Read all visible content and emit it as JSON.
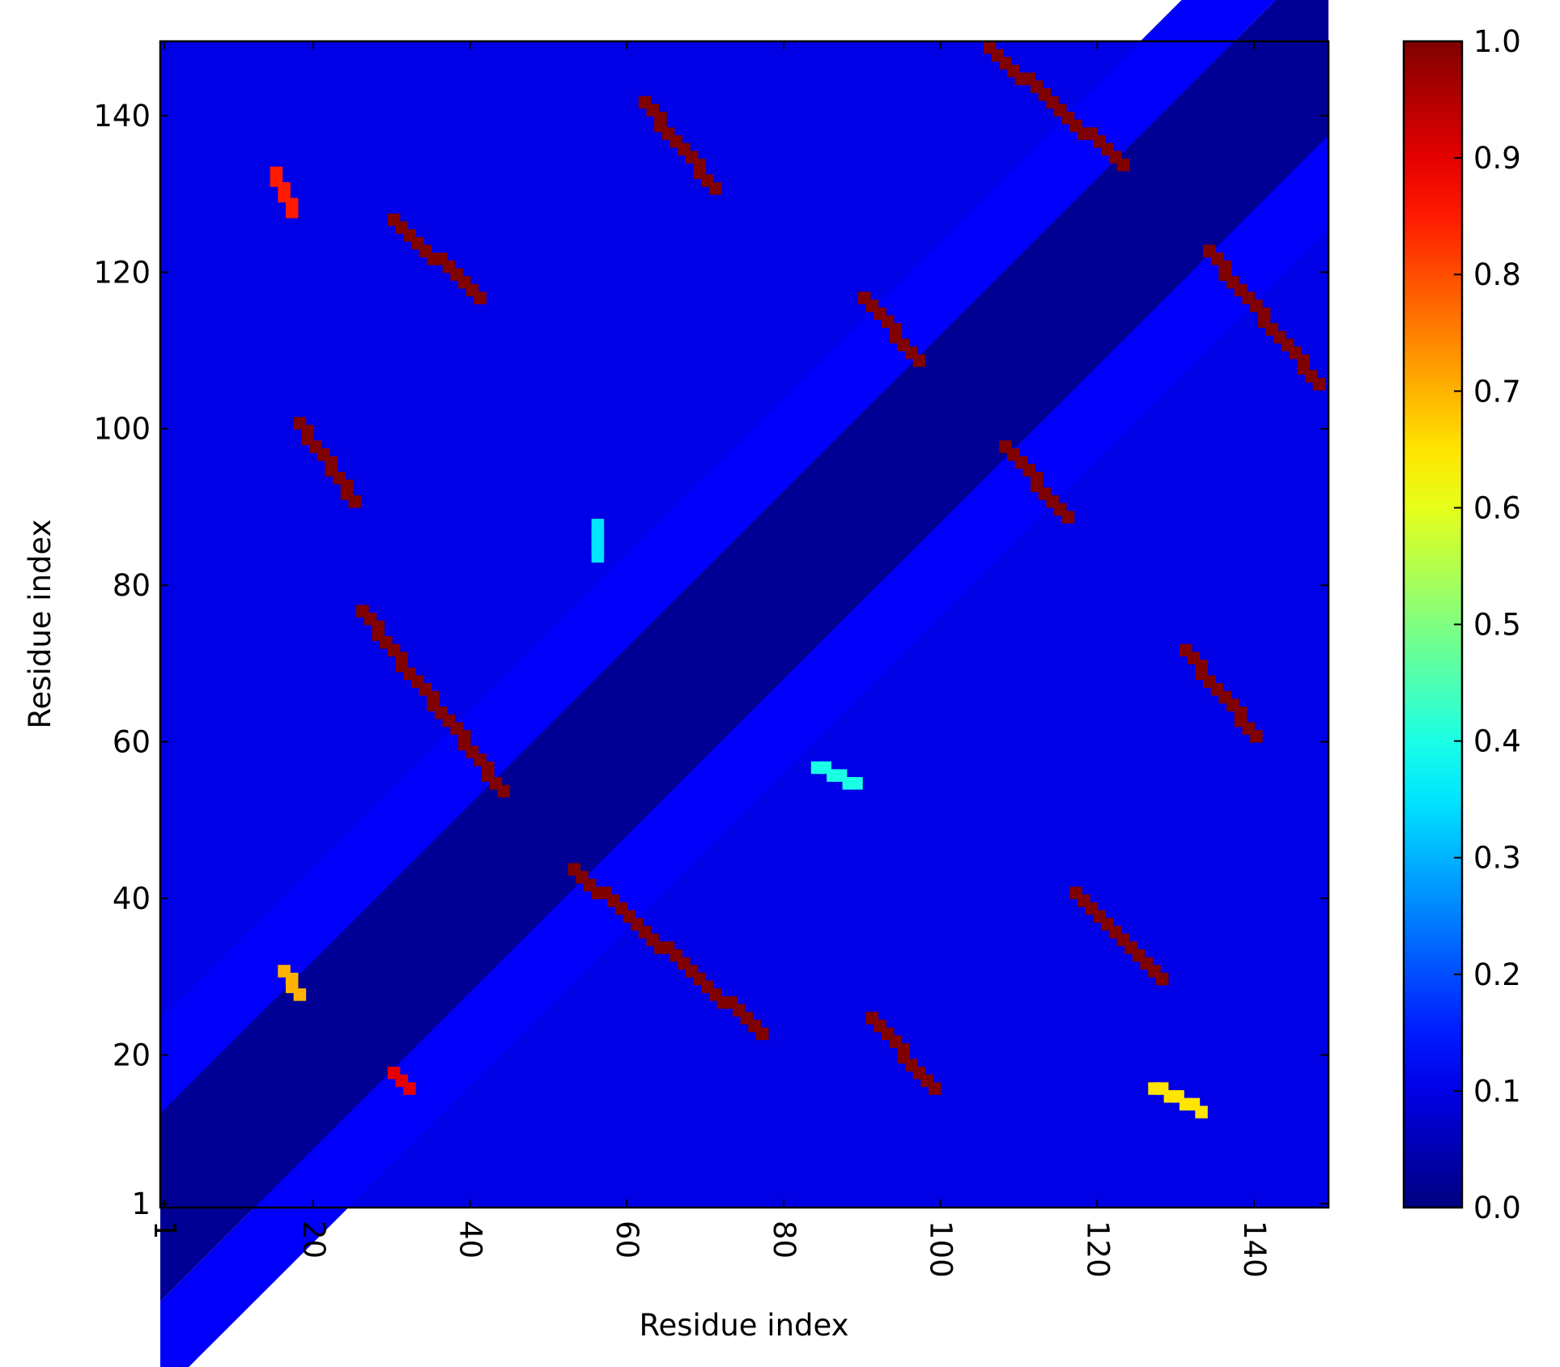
{
  "chart_data": {
    "type": "heatmap",
    "title": "",
    "xlabel": "Residue index",
    "ylabel": "Residue index",
    "x_ticks": [
      1,
      20,
      40,
      60,
      80,
      100,
      120,
      140
    ],
    "y_ticks": [
      1,
      20,
      40,
      60,
      80,
      100,
      120,
      140
    ],
    "xlim": [
      1,
      149
    ],
    "ylim": [
      1,
      149
    ],
    "grid": false,
    "colormap": "jet",
    "colorbar": {
      "range": [
        0.0,
        1.0
      ],
      "ticks": [
        "0.0",
        "0.1",
        "0.2",
        "0.3",
        "0.4",
        "0.5",
        "0.6",
        "0.7",
        "0.8",
        "0.9",
        "1.0"
      ]
    },
    "diagonal": {
      "main_band_halfwidth": 12,
      "main_band_value": 0.02,
      "side_band_width": 12,
      "side_band_value": 0.12,
      "background_value": 0.1
    },
    "contacts": [
      {
        "from": [
          15,
          133
        ],
        "to": [
          17,
          128
        ],
        "value": 0.85
      },
      {
        "from": [
          18,
          101
        ],
        "to": [
          25,
          91
        ],
        "value": 1.0
      },
      {
        "from": [
          16,
          31
        ],
        "to": [
          18,
          28
        ],
        "value": 0.7
      },
      {
        "from": [
          30,
          18
        ],
        "to": [
          32,
          16
        ],
        "value": 0.9
      },
      {
        "from": [
          26,
          77
        ],
        "to": [
          44,
          54
        ],
        "value": 1.0
      },
      {
        "from": [
          30,
          127
        ],
        "to": [
          41,
          117
        ],
        "value": 1.0
      },
      {
        "from": [
          53,
          44
        ],
        "to": [
          77,
          23
        ],
        "value": 1.0
      },
      {
        "from": [
          56,
          88
        ],
        "to": [
          56,
          84
        ],
        "value": 0.35
      },
      {
        "from": [
          62,
          142
        ],
        "to": [
          71,
          131
        ],
        "value": 1.0
      },
      {
        "from": [
          84,
          57
        ],
        "to": [
          89,
          55
        ],
        "value": 0.4
      },
      {
        "from": [
          90,
          117
        ],
        "to": [
          97,
          109
        ],
        "value": 1.0
      },
      {
        "from": [
          91,
          25
        ],
        "to": [
          99,
          16
        ],
        "value": 1.0
      },
      {
        "from": [
          106,
          149
        ],
        "to": [
          123,
          134
        ],
        "value": 1.0
      },
      {
        "from": [
          108,
          98
        ],
        "to": [
          116,
          89
        ],
        "value": 1.0
      },
      {
        "from": [
          117,
          41
        ],
        "to": [
          128,
          30
        ],
        "value": 1.0
      },
      {
        "from": [
          127,
          16
        ],
        "to": [
          133,
          13
        ],
        "value": 0.65
      },
      {
        "from": [
          131,
          72
        ],
        "to": [
          140,
          61
        ],
        "value": 1.0
      },
      {
        "from": [
          134,
          123
        ],
        "to": [
          148,
          106
        ],
        "value": 1.0
      }
    ]
  }
}
